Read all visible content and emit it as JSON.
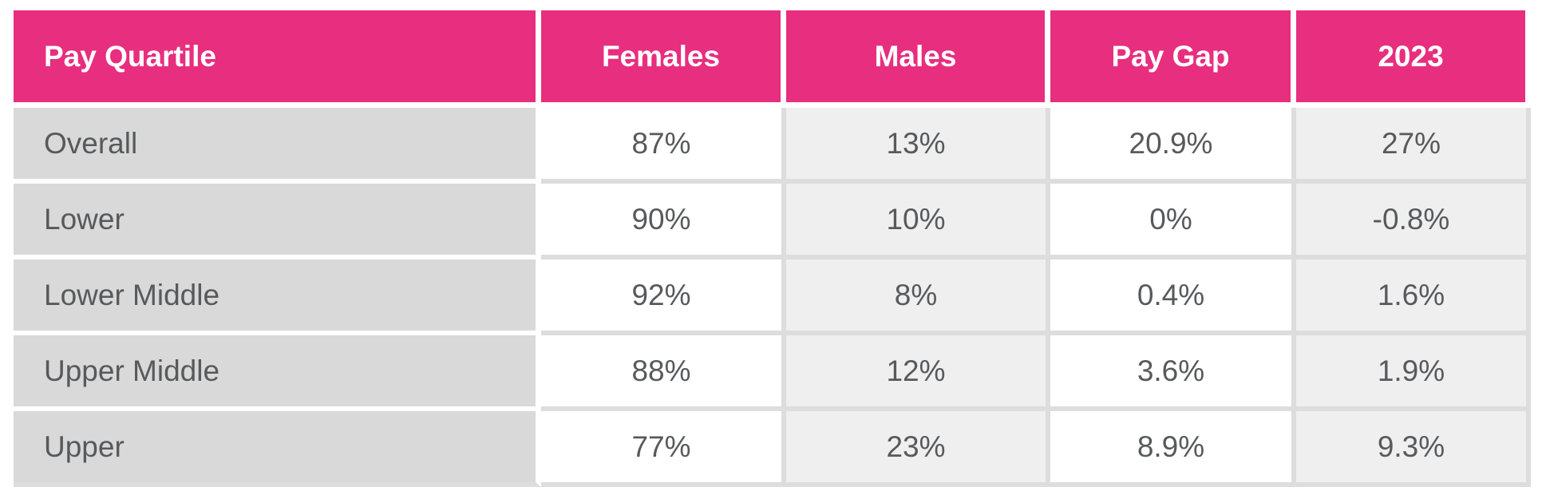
{
  "table": {
    "headers": [
      "Pay Quartile",
      "Females",
      "Males",
      "Pay Gap",
      "2023"
    ],
    "rows": [
      [
        "Overall",
        "87%",
        "13%",
        "20.9%",
        "27%"
      ],
      [
        "Lower",
        "90%",
        "10%",
        "0%",
        "-0.8%"
      ],
      [
        "Lower Middle",
        "92%",
        "8%",
        "0.4%",
        "1.6%"
      ],
      [
        "Upper Middle",
        "88%",
        "12%",
        "3.6%",
        "1.9%"
      ],
      [
        "Upper",
        "77%",
        "23%",
        "8.9%",
        "9.3%"
      ]
    ]
  },
  "colors": {
    "header_bg": "#E82E7E",
    "header_text": "#FFFFFF",
    "row_label_bg": "#D9D9D9",
    "cell_bg": "#FFFFFF",
    "cell_alt_bg": "#EFEFEF",
    "grid_line": "#DDDDDD",
    "value_text": "#58595B"
  },
  "chart_data": {
    "type": "table",
    "columns": [
      "Pay Quartile",
      "Females",
      "Males",
      "Pay Gap",
      "2023"
    ],
    "rows": [
      {
        "pay_quartile": "Overall",
        "females_pct": 87,
        "males_pct": 13,
        "pay_gap_pct": 20.9,
        "y2023_pct": 27
      },
      {
        "pay_quartile": "Lower",
        "females_pct": 90,
        "males_pct": 10,
        "pay_gap_pct": 0,
        "y2023_pct": -0.8
      },
      {
        "pay_quartile": "Lower Middle",
        "females_pct": 92,
        "males_pct": 8,
        "pay_gap_pct": 0.4,
        "y2023_pct": 1.6
      },
      {
        "pay_quartile": "Upper Middle",
        "females_pct": 88,
        "males_pct": 12,
        "pay_gap_pct": 3.6,
        "y2023_pct": 1.9
      },
      {
        "pay_quartile": "Upper",
        "females_pct": 77,
        "males_pct": 23,
        "pay_gap_pct": 8.9,
        "y2023_pct": 9.3
      }
    ]
  }
}
